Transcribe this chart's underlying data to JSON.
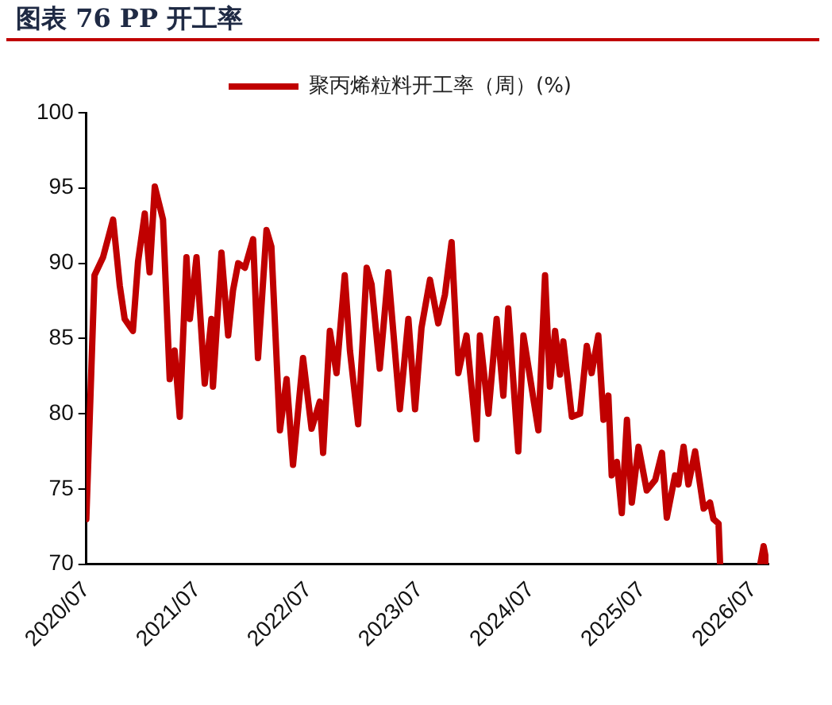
{
  "chart_data": {
    "type": "line",
    "title": "图表 76 PP 开工率",
    "x": [
      "2020-07-01",
      "2020-07-28",
      "2020-08-25",
      "2020-09-27",
      "2020-10-19",
      "2020-11-04",
      "2020-12-01",
      "2020-12-18",
      "2021-01-09",
      "2021-01-25",
      "2021-02-11",
      "2021-03-10",
      "2021-04-01",
      "2021-04-17",
      "2021-05-04",
      "2021-05-26",
      "2021-06-06",
      "2021-06-28",
      "2021-07-25",
      "2021-08-16",
      "2021-08-21",
      "2021-09-18",
      "2021-10-10",
      "2021-10-26",
      "2021-11-12",
      "2021-12-04",
      "2021-12-31",
      "2022-01-16",
      "2022-02-13",
      "2022-03-01",
      "2022-03-29",
      "2022-04-20",
      "2022-05-11",
      "2022-06-13",
      "2022-07-11",
      "2022-08-07",
      "2022-08-18",
      "2022-09-09",
      "2022-10-01",
      "2022-10-28",
      "2022-11-14",
      "2022-12-11",
      "2023-01-08",
      "2023-01-24",
      "2023-02-20",
      "2023-03-20",
      "2023-04-27",
      "2023-05-25",
      "2023-06-16",
      "2023-07-07",
      "2023-08-04",
      "2023-08-31",
      "2023-09-22",
      "2023-10-14",
      "2023-11-05",
      "2023-12-02",
      "2024-01-04",
      "2024-01-15",
      "2024-02-12",
      "2024-03-10",
      "2024-04-01",
      "2024-04-17",
      "2024-05-20",
      "2024-06-06",
      "2024-07-25",
      "2024-08-16",
      "2024-09-01",
      "2024-09-18",
      "2024-10-04",
      "2024-10-15",
      "2024-11-12",
      "2024-12-09",
      "2024-12-31",
      "2025-01-16",
      "2025-02-07",
      "2025-02-24",
      "2025-03-12",
      "2025-03-23",
      "2025-04-09",
      "2025-04-25",
      "2025-05-12",
      "2025-05-28",
      "2025-06-19",
      "2025-07-16",
      "2025-08-13",
      "2025-09-04",
      "2025-09-20",
      "2025-10-17",
      "2025-10-28",
      "2025-11-14",
      "2025-11-30",
      "2025-12-22",
      "2026-01-19",
      "2026-02-09",
      "2026-02-20",
      "2026-03-09",
      "2026-03-14",
      "2026-05-01",
      "2026-07-24",
      "2026-08-04",
      "2026-08-15"
    ],
    "series": [
      {
        "name": "聚丙烯粒料开工率（周）(%)",
        "color": "#c00000",
        "values": [
          73.0,
          89.2,
          90.4,
          92.9,
          88.5,
          86.3,
          85.5,
          90.1,
          93.3,
          89.4,
          95.1,
          92.9,
          82.3,
          84.2,
          79.8,
          90.4,
          86.3,
          90.4,
          82.0,
          86.3,
          81.8,
          90.7,
          85.2,
          88.2,
          90.0,
          89.7,
          91.6,
          83.7,
          92.2,
          91.1,
          78.9,
          82.3,
          76.6,
          83.7,
          79.0,
          80.8,
          77.4,
          85.5,
          82.7,
          89.2,
          84.2,
          79.3,
          89.7,
          88.6,
          83.0,
          89.4,
          80.3,
          86.3,
          80.3,
          85.7,
          88.9,
          86.0,
          87.9,
          91.4,
          82.7,
          85.2,
          78.3,
          85.2,
          80.0,
          86.3,
          81.2,
          87.0,
          77.5,
          85.2,
          78.9,
          89.2,
          81.8,
          85.5,
          82.6,
          84.8,
          79.8,
          80.0,
          84.5,
          82.7,
          85.2,
          79.6,
          81.2,
          75.9,
          76.8,
          73.4,
          79.6,
          74.1,
          77.8,
          74.9,
          75.6,
          77.4,
          73.1,
          75.9,
          75.3,
          77.8,
          75.3,
          77.5,
          73.7,
          74.1,
          73.0,
          72.7,
          70.0,
          null,
          70.0,
          71.2,
          70.0
        ]
      }
    ],
    "xlim": [
      "2020-07-01",
      "2026-08-20"
    ],
    "xticks": [
      {
        "value": "2020-07",
        "label": "2020/07"
      },
      {
        "value": "2021-07",
        "label": "2021/07"
      },
      {
        "value": "2022-07",
        "label": "2022/07"
      },
      {
        "value": "2023-07",
        "label": "2023/07"
      },
      {
        "value": "2024-07",
        "label": "2024/07"
      },
      {
        "value": "2025-07",
        "label": "2025/07"
      },
      {
        "value": "2026-07",
        "label": "2026/07"
      }
    ],
    "ylim": [
      70,
      100
    ],
    "yticks": [
      70,
      75,
      80,
      85,
      90,
      95,
      100
    ],
    "grid": false,
    "legend": "top",
    "marker": "none",
    "line_style": "solid"
  }
}
